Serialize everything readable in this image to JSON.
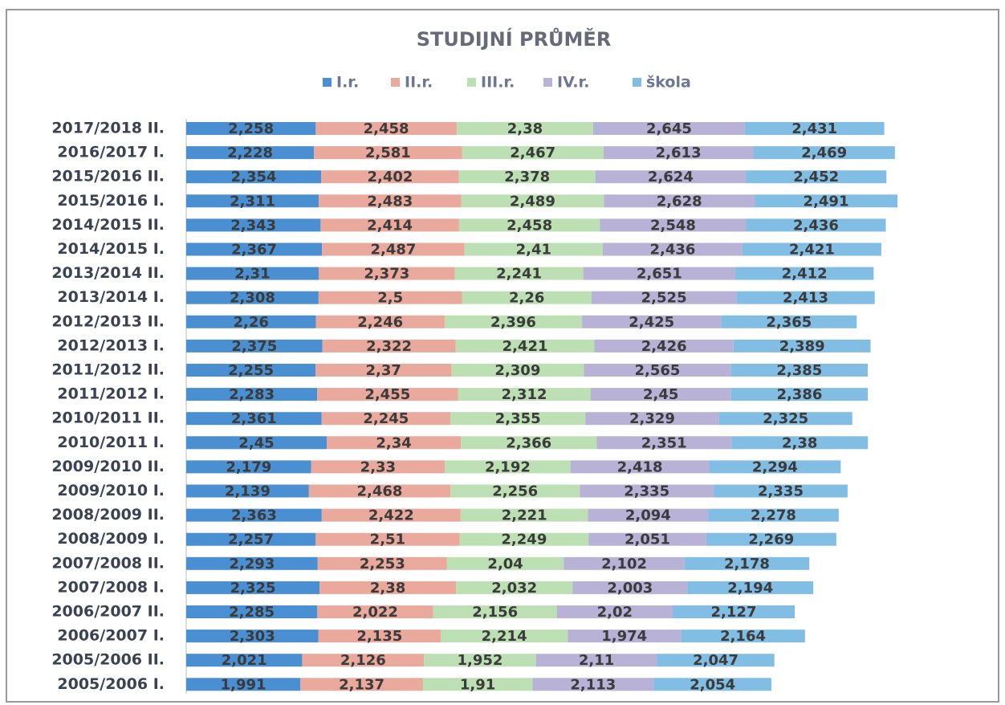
{
  "chart_data": {
    "type": "stacked-bar-horizontal",
    "title": "STUDIJNÍ PRŮMĚR",
    "categories": [
      "2017/2018 II.",
      "2016/2017 I.",
      "2015/2016 II.",
      "2015/2016 I.",
      "2014/2015 II.",
      "2014/2015 I.",
      "2013/2014 II.",
      "2013/2014 I.",
      "2012/2013 II.",
      "2012/2013 I.",
      "2011/2012 II.",
      "2011/2012 I.",
      "2010/2011 II.",
      "2010/2011 I.",
      "2009/2010 II.",
      "2009/2010 I.",
      "2008/2009 II.",
      "2008/2009 I.",
      "2007/2008 II.",
      "2007/2008 I.",
      "2006/2007 II.",
      "2006/2007 I.",
      "2005/2006 II.",
      "2005/2006 I."
    ],
    "series": [
      {
        "name": "I.r.",
        "color": "#4a8fd2",
        "values": [
          2.258,
          2.228,
          2.354,
          2.311,
          2.343,
          2.367,
          2.31,
          2.308,
          2.26,
          2.375,
          2.255,
          2.283,
          2.361,
          2.45,
          2.179,
          2.139,
          2.363,
          2.257,
          2.293,
          2.325,
          2.285,
          2.303,
          2.021,
          1.991
        ],
        "value_labels": [
          "2,258",
          "2,228",
          "2,354",
          "2,311",
          "2,343",
          "2,367",
          "2,31",
          "2,308",
          "2,26",
          "2,375",
          "2,255",
          "2,283",
          "2,361",
          "2,45",
          "2,179",
          "2,139",
          "2,363",
          "2,257",
          "2,293",
          "2,325",
          "2,285",
          "2,303",
          "2,021",
          "1,991"
        ]
      },
      {
        "name": "II.r.",
        "color": "#e9a99c",
        "values": [
          2.458,
          2.581,
          2.402,
          2.483,
          2.414,
          2.487,
          2.373,
          2.5,
          2.246,
          2.322,
          2.37,
          2.455,
          2.245,
          2.34,
          2.33,
          2.468,
          2.422,
          2.51,
          2.253,
          2.38,
          2.022,
          2.135,
          2.126,
          2.137
        ],
        "value_labels": [
          "2,458",
          "2,581",
          "2,402",
          "2,483",
          "2,414",
          "2,487",
          "2,373",
          "2,5",
          "2,246",
          "2,322",
          "2,37",
          "2,455",
          "2,245",
          "2,34",
          "2,33",
          "2,468",
          "2,422",
          "2,51",
          "2,253",
          "2,38",
          "2,022",
          "2,135",
          "2,126",
          "2,137"
        ]
      },
      {
        "name": "III.r.",
        "color": "#bce0b3",
        "values": [
          2.38,
          2.467,
          2.378,
          2.489,
          2.458,
          2.41,
          2.241,
          2.26,
          2.396,
          2.421,
          2.309,
          2.312,
          2.355,
          2.366,
          2.192,
          2.256,
          2.221,
          2.249,
          2.04,
          2.032,
          2.156,
          2.214,
          1.952,
          1.91
        ],
        "value_labels": [
          "2,38",
          "2,467",
          "2,378",
          "2,489",
          "2,458",
          "2,41",
          "2,241",
          "2,26",
          "2,396",
          "2,421",
          "2,309",
          "2,312",
          "2,355",
          "2,366",
          "2,192",
          "2,256",
          "2,221",
          "2,249",
          "2,04",
          "2,032",
          "2,156",
          "2,214",
          "1,952",
          "1,91"
        ]
      },
      {
        "name": "IV.r.",
        "color": "#b7b2d6",
        "values": [
          2.645,
          2.613,
          2.624,
          2.628,
          2.548,
          2.436,
          2.651,
          2.525,
          2.425,
          2.426,
          2.565,
          2.45,
          2.329,
          2.351,
          2.418,
          2.335,
          2.094,
          2.051,
          2.102,
          2.003,
          2.02,
          1.974,
          2.11,
          2.113
        ],
        "value_labels": [
          "2,645",
          "2,613",
          "2,624",
          "2,628",
          "2,548",
          "2,436",
          "2,651",
          "2,525",
          "2,425",
          "2,426",
          "2,565",
          "2,45",
          "2,329",
          "2,351",
          "2,418",
          "2,335",
          "2,094",
          "2,051",
          "2,102",
          "2,003",
          "2,02",
          "1,974",
          "2,11",
          "2,113"
        ]
      },
      {
        "name": "škola",
        "color": "#82bde4",
        "values": [
          2.431,
          2.469,
          2.452,
          2.491,
          2.436,
          2.421,
          2.412,
          2.413,
          2.365,
          2.389,
          2.385,
          2.386,
          2.325,
          2.38,
          2.294,
          2.335,
          2.278,
          2.269,
          2.178,
          2.194,
          2.127,
          2.164,
          2.047,
          2.054
        ],
        "value_labels": [
          "2,431",
          "2,469",
          "2,452",
          "2,491",
          "2,436",
          "2,421",
          "2,412",
          "2,413",
          "2,365",
          "2,389",
          "2,385",
          "2,386",
          "2,325",
          "2,38",
          "2,294",
          "2,335",
          "2,278",
          "2,269",
          "2,178",
          "2,194",
          "2,127",
          "2,164",
          "2,047",
          "2,054"
        ]
      }
    ],
    "legend": "top"
  }
}
